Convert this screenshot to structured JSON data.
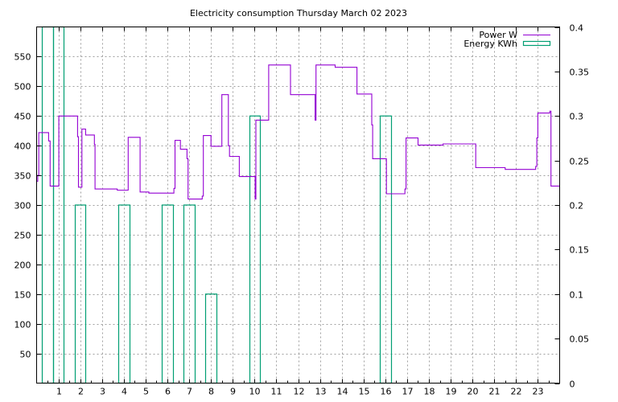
{
  "chart_data": {
    "type": "line",
    "title": "Electricity consumption Thursday March 02 2023",
    "xlabel": "",
    "ylabel": "",
    "x_ticks": [
      "1",
      "2",
      "3",
      "4",
      "5",
      "6",
      "7",
      "8",
      "9",
      "10",
      "11",
      "12",
      "13",
      "14",
      "15",
      "16",
      "17",
      "18",
      "19",
      "20",
      "21",
      "22",
      "23"
    ],
    "xlim": [
      0,
      24
    ],
    "y1_ticks": [
      "50",
      "100",
      "150",
      "200",
      "250",
      "300",
      "350",
      "400",
      "450",
      "500",
      "550"
    ],
    "ylim": [
      0,
      600
    ],
    "y2_ticks": [
      "0",
      "0.05",
      "0.1",
      "0.15",
      "0.2",
      "0.25",
      "0.3",
      "0.35",
      "0.4"
    ],
    "y2lim": [
      0,
      0.4
    ],
    "grid": true,
    "legend_position": "top-right",
    "series": [
      {
        "name": "Power W",
        "color": "#9400d3",
        "axis": "y1",
        "style": "steps",
        "points": [
          [
            0.0,
            340
          ],
          [
            0.05,
            350
          ],
          [
            0.1,
            422
          ],
          [
            0.5,
            422
          ],
          [
            0.55,
            408
          ],
          [
            0.62,
            332
          ],
          [
            1.0,
            332
          ],
          [
            1.02,
            450
          ],
          [
            1.85,
            450
          ],
          [
            1.88,
            415
          ],
          [
            1.92,
            330
          ],
          [
            2.05,
            330
          ],
          [
            2.08,
            428
          ],
          [
            2.2,
            428
          ],
          [
            2.25,
            418
          ],
          [
            2.6,
            418
          ],
          [
            2.65,
            402
          ],
          [
            2.68,
            327
          ],
          [
            3.65,
            327
          ],
          [
            3.7,
            325
          ],
          [
            4.15,
            325
          ],
          [
            4.2,
            414
          ],
          [
            4.7,
            414
          ],
          [
            4.75,
            322
          ],
          [
            5.1,
            322
          ],
          [
            5.15,
            320
          ],
          [
            6.25,
            320
          ],
          [
            6.3,
            328
          ],
          [
            6.35,
            409
          ],
          [
            6.55,
            409
          ],
          [
            6.6,
            394
          ],
          [
            6.85,
            394
          ],
          [
            6.9,
            378
          ],
          [
            6.95,
            310
          ],
          [
            7.55,
            310
          ],
          [
            7.6,
            315
          ],
          [
            7.65,
            417
          ],
          [
            7.95,
            417
          ],
          [
            8.0,
            399
          ],
          [
            8.45,
            399
          ],
          [
            8.5,
            486
          ],
          [
            8.75,
            486
          ],
          [
            8.8,
            400
          ],
          [
            8.85,
            382
          ],
          [
            9.25,
            382
          ],
          [
            9.3,
            348
          ],
          [
            10.0,
            348
          ],
          [
            10.03,
            310
          ],
          [
            10.06,
            443
          ],
          [
            10.6,
            443
          ],
          [
            10.65,
            536
          ],
          [
            11.6,
            536
          ],
          [
            11.65,
            486
          ],
          [
            12.75,
            486
          ],
          [
            12.78,
            443
          ],
          [
            12.82,
            536
          ],
          [
            13.65,
            536
          ],
          [
            13.7,
            532
          ],
          [
            14.65,
            532
          ],
          [
            14.7,
            487
          ],
          [
            15.35,
            487
          ],
          [
            15.38,
            435
          ],
          [
            15.42,
            378
          ],
          [
            16.0,
            378
          ],
          [
            16.05,
            319
          ],
          [
            16.85,
            319
          ],
          [
            16.9,
            327
          ],
          [
            16.95,
            413
          ],
          [
            17.45,
            413
          ],
          [
            17.5,
            401
          ],
          [
            18.6,
            401
          ],
          [
            18.65,
            403
          ],
          [
            20.1,
            403
          ],
          [
            20.15,
            363
          ],
          [
            21.45,
            363
          ],
          [
            21.5,
            360
          ],
          [
            22.85,
            360
          ],
          [
            22.9,
            365
          ],
          [
            22.95,
            413
          ],
          [
            23.0,
            455
          ],
          [
            23.5,
            455
          ],
          [
            23.55,
            458
          ],
          [
            23.6,
            332
          ],
          [
            24.0,
            332
          ]
        ]
      },
      {
        "name": "Energy KWh",
        "color": "#009e73",
        "axis": "y2",
        "style": "bars",
        "bars": [
          {
            "x0": 0.25,
            "x1": 0.75,
            "value": 0.4
          },
          {
            "x0": 0.75,
            "x1": 1.25,
            "value": 0.4
          },
          {
            "x0": 1.75,
            "x1": 2.25,
            "value": 0.2
          },
          {
            "x0": 3.75,
            "x1": 4.25,
            "value": 0.2
          },
          {
            "x0": 5.75,
            "x1": 6.25,
            "value": 0.2
          },
          {
            "x0": 6.75,
            "x1": 7.25,
            "value": 0.2
          },
          {
            "x0": 7.75,
            "x1": 8.25,
            "value": 0.1
          },
          {
            "x0": 9.75,
            "x1": 10.25,
            "value": 0.3
          },
          {
            "x0": 15.75,
            "x1": 16.25,
            "value": 0.3
          }
        ]
      }
    ]
  }
}
